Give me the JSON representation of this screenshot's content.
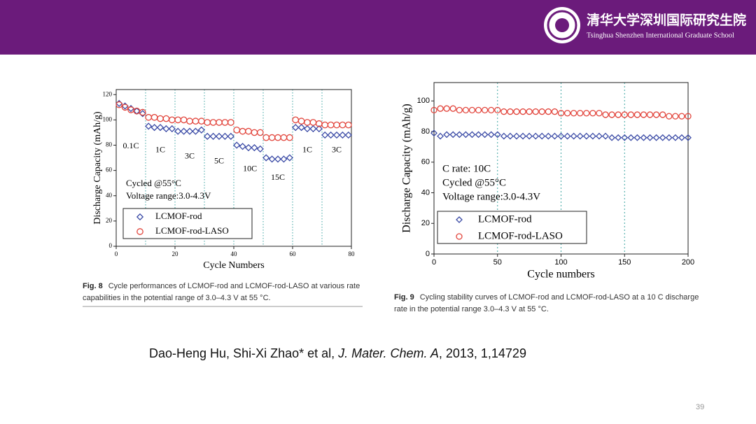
{
  "header": {
    "title": "清华大学深圳国际研究生院",
    "subtitle": "Tsinghua Shenzhen International Graduate School"
  },
  "chart_data": [
    {
      "type": "scatter",
      "xlabel": "Cycle Numbers",
      "ylabel": "Discharge Capacity (mAh/g)",
      "annotations": [
        "0.1C",
        "1C",
        "3C",
        "5C",
        "10C",
        "15C",
        "1C",
        "3C",
        "Cycled @55°C",
        "Voltage range:3.0-4.3V"
      ],
      "x": [
        1,
        3,
        5,
        7,
        9,
        11,
        13,
        15,
        17,
        19,
        21,
        23,
        25,
        27,
        29,
        31,
        33,
        35,
        37,
        39,
        41,
        43,
        45,
        47,
        49,
        51,
        53,
        55,
        57,
        59,
        61,
        63,
        65,
        67,
        69,
        71,
        73,
        75,
        77,
        79
      ],
      "series": [
        {
          "name": "LCMOF-rod",
          "color": "#3b4ba6",
          "marker": "diamond",
          "values": [
            113,
            111,
            109,
            107,
            105,
            95,
            94,
            94,
            93,
            93,
            91,
            91,
            91,
            91,
            92,
            87,
            87,
            87,
            87,
            87,
            80,
            79,
            78,
            78,
            77,
            70,
            69,
            69,
            69,
            70,
            94,
            94,
            93,
            93,
            93,
            88,
            88,
            88,
            88,
            88
          ]
        },
        {
          "name": "LCMOF-rod-LASO",
          "color": "#e2453c",
          "marker": "circle",
          "values": [
            112,
            110,
            108,
            107,
            106,
            102,
            102,
            101,
            101,
            100,
            100,
            100,
            99,
            99,
            99,
            98,
            98,
            98,
            98,
            98,
            92,
            91,
            91,
            90,
            90,
            86,
            86,
            86,
            86,
            86,
            100,
            99,
            98,
            98,
            97,
            96,
            96,
            96,
            96,
            96
          ]
        }
      ],
      "xlim": [
        0,
        80
      ],
      "xticks": [
        0,
        20,
        40,
        60,
        80
      ],
      "ylim": [
        0,
        124
      ],
      "yticks": [
        0,
        20,
        40,
        60,
        80,
        100,
        120
      ],
      "vlines": [
        10,
        20,
        30,
        40,
        50,
        60,
        70
      ],
      "legend": "lower left"
    },
    {
      "type": "scatter",
      "xlabel": "Cycle numbers",
      "ylabel": "Discharge Capacity (mAh/g)",
      "annotations": [
        "C rate: 10C",
        "Cycled @55°C",
        "Voltage range:3.0-4.3V"
      ],
      "x": [
        0,
        5,
        10,
        15,
        20,
        25,
        30,
        35,
        40,
        45,
        50,
        55,
        60,
        65,
        70,
        75,
        80,
        85,
        90,
        95,
        100,
        105,
        110,
        115,
        120,
        125,
        130,
        135,
        140,
        145,
        150,
        155,
        160,
        165,
        170,
        175,
        180,
        185,
        190,
        195,
        200
      ],
      "series": [
        {
          "name": "LCMOF-rod",
          "color": "#3b4ba6",
          "marker": "diamond",
          "values": [
            79,
            77,
            78,
            78,
            78,
            78,
            78,
            78,
            78,
            78,
            78,
            77,
            77,
            77,
            77,
            77,
            77,
            77,
            77,
            77,
            77,
            77,
            77,
            77,
            77,
            77,
            77,
            77,
            76,
            76,
            76,
            76,
            76,
            76,
            76,
            76,
            76,
            76,
            76,
            76,
            76
          ]
        },
        {
          "name": "LCMOF-rod-LASO",
          "color": "#e2453c",
          "marker": "circle",
          "values": [
            94,
            95,
            95,
            95,
            94,
            94,
            94,
            94,
            94,
            94,
            94,
            93,
            93,
            93,
            93,
            93,
            93,
            93,
            93,
            93,
            92,
            92,
            92,
            92,
            92,
            92,
            92,
            91,
            91,
            91,
            91,
            91,
            91,
            91,
            91,
            91,
            91,
            90,
            90,
            90,
            90
          ]
        }
      ],
      "xlim": [
        0,
        200
      ],
      "xticks": [
        0,
        50,
        100,
        150,
        200
      ],
      "ylim": [
        0,
        112
      ],
      "yticks": [
        0,
        20,
        40,
        60,
        80,
        100
      ],
      "vlines": [
        50,
        100,
        150
      ],
      "legend": "lower left"
    }
  ],
  "captions": [
    {
      "label": "Fig. 8",
      "text": "Cycle performances of LCMOF-rod and LCMOF-rod-LASO at various rate capabilities in the potential range of 3.0–4.3 V at 55 °C."
    },
    {
      "label": "Fig. 9",
      "text": "Cycling stability curves of LCMOF-rod and LCMOF-rod-LASO at a 10 C discharge rate in the potential range 3.0–4.3 V at 55 °C."
    }
  ],
  "citation": {
    "authors": "Dao-Heng Hu, Shi-Xi Zhao* et al, ",
    "journal": "J. Mater. Chem. A",
    "rest": ", 2013, 1,14729"
  },
  "page_number": "39"
}
